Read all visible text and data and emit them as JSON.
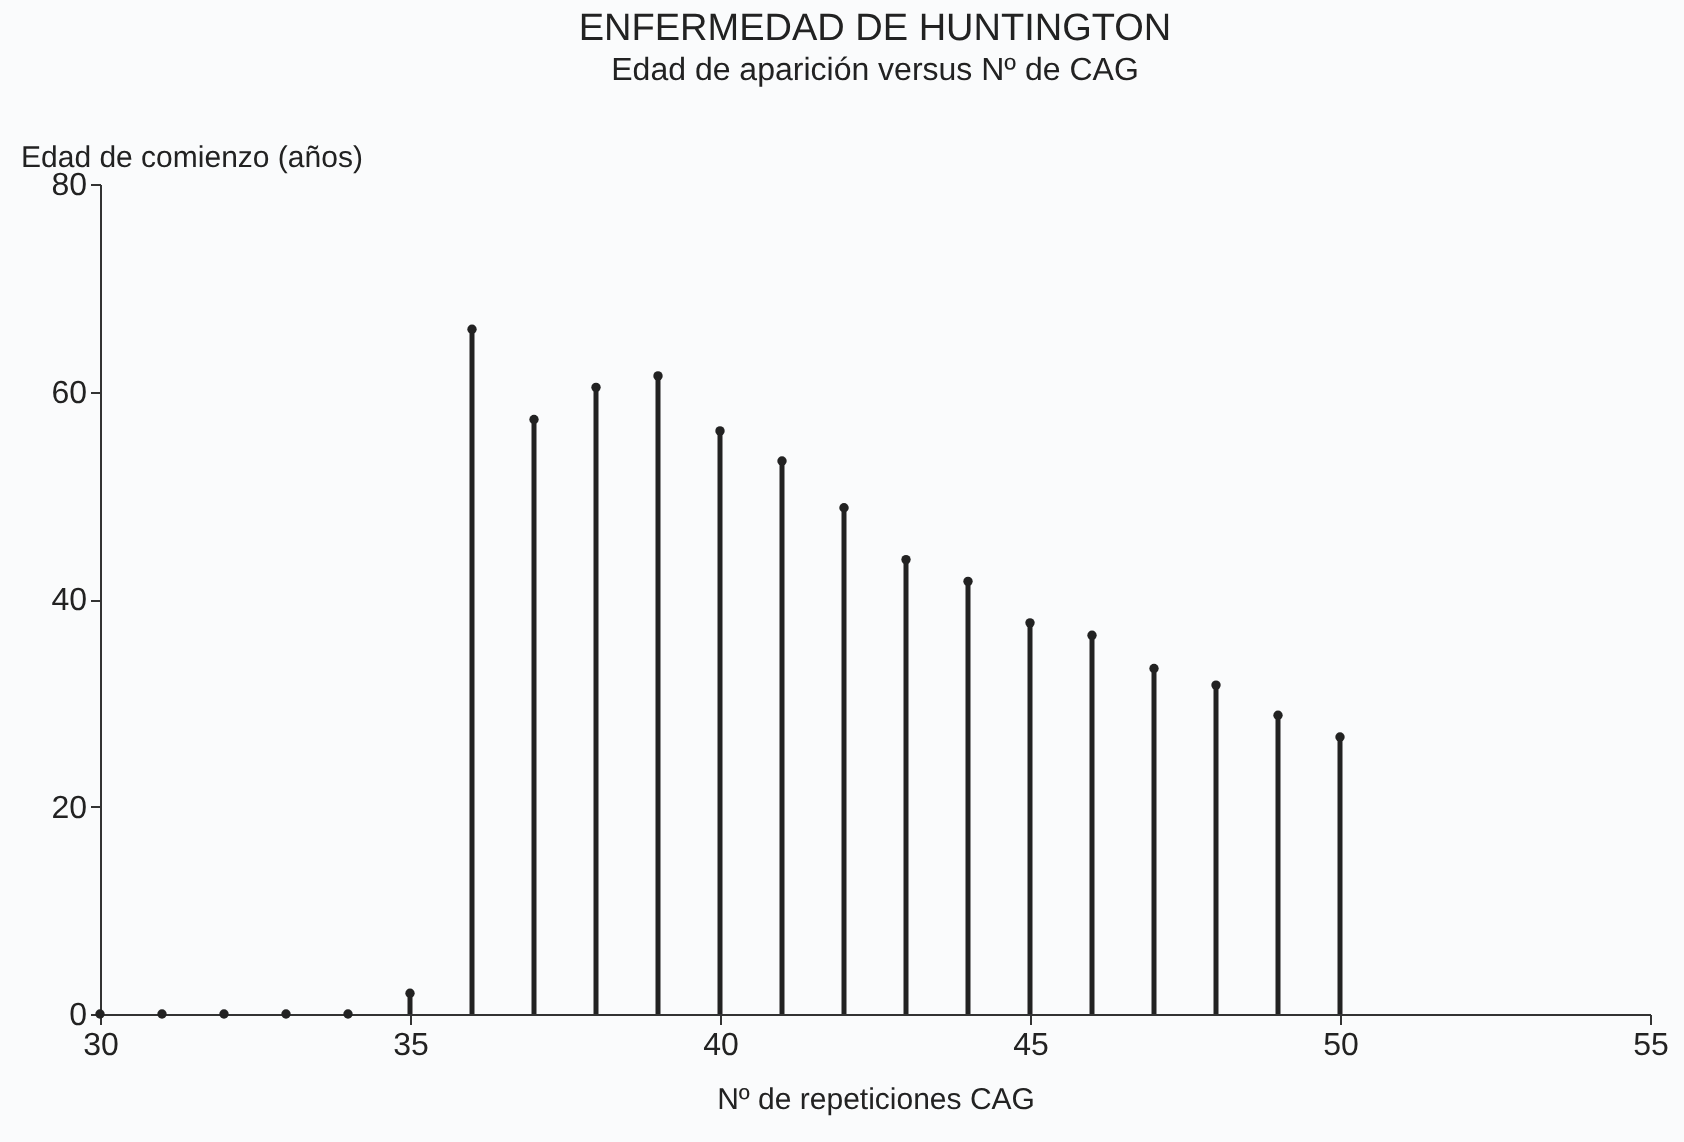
{
  "chart_data": {
    "type": "lollipop",
    "title": "ENFERMEDAD DE HUNTINGTON",
    "subtitle": "Edad de aparición versus Nº de CAG",
    "xlabel": "Nº de repeticiones CAG",
    "ylabel": "Edad de comienzo (años)",
    "x": [
      30,
      31,
      32,
      33,
      34,
      35,
      36,
      37,
      38,
      39,
      40,
      41,
      42,
      43,
      44,
      45,
      46,
      47,
      48,
      49,
      50
    ],
    "series": [
      {
        "color": "#222222",
        "values": [
          0,
          0,
          0,
          0,
          0,
          2,
          66,
          57.3,
          60.4,
          61.5,
          56.2,
          53.3,
          48.8,
          43.8,
          41.7,
          37.7,
          36.5,
          33.3,
          31.7,
          28.8,
          26.7
        ]
      }
    ],
    "xlim": [
      30,
      55
    ],
    "xticks": [
      30,
      35,
      40,
      45,
      50,
      55
    ],
    "ylim": [
      0,
      80
    ],
    "yticks": [
      0,
      20,
      40,
      60,
      80
    ],
    "marker": "circle"
  }
}
